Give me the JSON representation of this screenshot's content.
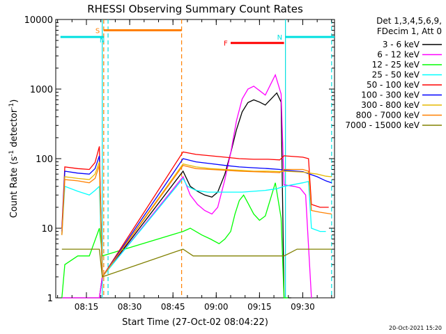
{
  "chart_data": {
    "type": "line",
    "title": "RHESSI Observing Summary Count Rates",
    "xlabel": "Start Time (27-Oct-02 08:04:22)",
    "ylabel_parts": [
      "Count Rate (s",
      "-1",
      " detector",
      "-1",
      ")"
    ],
    "x_unit": "minutes UT (hh:mm, 27-Oct-02)",
    "xlim": [
      "08:04:22",
      "09:41:00"
    ],
    "ylim": [
      1,
      10000
    ],
    "yscale": "log",
    "x_ticks": [
      "08:15",
      "08:30",
      "08:45",
      "09:00",
      "09:15",
      "09:30"
    ],
    "y_ticks": [
      "1",
      "10",
      "100",
      "1000",
      "10000"
    ],
    "legend_header": [
      "Det 1,3,4,5,6,9,",
      "FDecim 1, Att 0"
    ],
    "legend_position": "right",
    "footer_date": "20-Oct-2021 15:20",
    "grid": false,
    "flags": [
      {
        "label": "S",
        "color": "#ff8000",
        "start": "08:21:00",
        "end": "08:48:00",
        "level": 7000
      },
      {
        "label": "N",
        "color": "#00e0e0",
        "start": "08:06:00",
        "end": "08:21:00",
        "level": 5600
      },
      {
        "label": "N",
        "color": "#00e0e0",
        "start": "09:24:00",
        "end": "09:41:00",
        "level": 5600
      },
      {
        "label": "F",
        "color": "#ff0000",
        "start": "09:05:00",
        "end": "09:23:30",
        "level": 4600
      }
    ],
    "boundary_markers": [
      {
        "time": "08:20:30",
        "color": "#00e0e0",
        "style": "solid"
      },
      {
        "time": "08:22:30",
        "color": "#00e0e0",
        "style": "dashed"
      },
      {
        "time": "08:21:00",
        "color": "#ff8000",
        "style": "dashed"
      },
      {
        "time": "08:48:00",
        "color": "#ff8000",
        "style": "dashed"
      },
      {
        "time": "09:24:00",
        "color": "#00e0e0",
        "style": "solid"
      },
      {
        "time": "09:40:00",
        "color": "#00e0e0",
        "style": "dashed"
      }
    ],
    "series": [
      {
        "name": "3 - 6 keV",
        "color": "#000000",
        "points": [
          [
            "08:06:30",
            1
          ],
          [
            "08:19:30",
            1
          ],
          [
            "08:20:30",
            2
          ],
          [
            "08:48:30",
            66
          ],
          [
            "08:51:00",
            40
          ],
          [
            "08:53:30",
            34
          ],
          [
            "08:56:00",
            30
          ],
          [
            "08:58:30",
            28
          ],
          [
            "09:00:30",
            33
          ],
          [
            "09:03:00",
            60
          ],
          [
            "09:05:00",
            120
          ],
          [
            "09:07:00",
            260
          ],
          [
            "09:09:00",
            470
          ],
          [
            "09:11:00",
            640
          ],
          [
            "09:13:00",
            700
          ],
          [
            "09:15:00",
            650
          ],
          [
            "09:17:00",
            590
          ],
          [
            "09:19:00",
            720
          ],
          [
            "09:21:00",
            880
          ],
          [
            "09:22:30",
            650
          ],
          [
            "09:23:30",
            1
          ],
          [
            "09:26:00",
            1
          ]
        ]
      },
      {
        "name": "6 - 12 keV",
        "color": "#ff00ff",
        "points": [
          [
            "08:06:30",
            1
          ],
          [
            "08:19:30",
            1
          ],
          [
            "08:20:30",
            2
          ],
          [
            "08:48:30",
            55
          ],
          [
            "08:51:00",
            30
          ],
          [
            "08:53:30",
            22
          ],
          [
            "08:56:00",
            18
          ],
          [
            "08:58:30",
            16
          ],
          [
            "09:00:30",
            20
          ],
          [
            "09:03:00",
            50
          ],
          [
            "09:05:00",
            120
          ],
          [
            "09:07:00",
            350
          ],
          [
            "09:09:00",
            720
          ],
          [
            "09:11:00",
            1000
          ],
          [
            "09:13:00",
            1100
          ],
          [
            "09:15:00",
            950
          ],
          [
            "09:17:00",
            820
          ],
          [
            "09:19:00",
            1200
          ],
          [
            "09:20:30",
            1600
          ],
          [
            "09:22:30",
            850
          ],
          [
            "09:23:30",
            42
          ],
          [
            "09:27:00",
            40
          ],
          [
            "09:29:00",
            38
          ],
          [
            "09:31:00",
            30
          ],
          [
            "09:33:00",
            1
          ]
        ]
      },
      {
        "name": "12 - 25 keV",
        "color": "#00ff00",
        "points": [
          [
            "08:06:30",
            1
          ],
          [
            "08:07:30",
            3
          ],
          [
            "08:12:00",
            4
          ],
          [
            "08:16:00",
            4
          ],
          [
            "08:19:30",
            10
          ],
          [
            "08:20:30",
            4
          ],
          [
            "08:48:30",
            9
          ],
          [
            "08:51:00",
            10
          ],
          [
            "08:55:00",
            8
          ],
          [
            "08:58:00",
            7
          ],
          [
            "09:01:00",
            6
          ],
          [
            "09:03:00",
            7
          ],
          [
            "09:05:00",
            9
          ],
          [
            "09:06:30",
            16
          ],
          [
            "09:08:00",
            25
          ],
          [
            "09:09:30",
            30
          ],
          [
            "09:11:00",
            23
          ],
          [
            "09:13:00",
            16
          ],
          [
            "09:15:00",
            13
          ],
          [
            "09:17:00",
            15
          ],
          [
            "09:19:00",
            28
          ],
          [
            "09:20:30",
            45
          ],
          [
            "09:22:30",
            14
          ],
          [
            "09:23:30",
            1
          ],
          [
            "09:25:00",
            1
          ]
        ]
      },
      {
        "name": "25 - 50 keV",
        "color": "#00ffff",
        "points": [
          [
            "08:06:30",
            8
          ],
          [
            "08:07:30",
            40
          ],
          [
            "08:12:00",
            34
          ],
          [
            "08:16:00",
            30
          ],
          [
            "08:18:00",
            35
          ],
          [
            "08:19:30",
            40
          ],
          [
            "08:20:30",
            2
          ],
          [
            "08:48:30",
            52
          ],
          [
            "08:50:00",
            40
          ],
          [
            "08:53:00",
            35
          ],
          [
            "08:57:00",
            33
          ],
          [
            "09:01:00",
            33
          ],
          [
            "09:05:00",
            33
          ],
          [
            "09:09:00",
            33
          ],
          [
            "09:13:00",
            34
          ],
          [
            "09:17:00",
            35
          ],
          [
            "09:21:00",
            37
          ],
          [
            "09:23:30",
            40
          ],
          [
            "09:30:00",
            45
          ],
          [
            "09:32:00",
            47
          ],
          [
            "09:33:00",
            10
          ],
          [
            "09:36:00",
            9
          ],
          [
            "09:38:00",
            9
          ]
        ]
      },
      {
        "name": "50 - 100 keV",
        "color": "#ff0000",
        "points": [
          [
            "08:06:30",
            10
          ],
          [
            "08:07:30",
            76
          ],
          [
            "08:12:00",
            72
          ],
          [
            "08:16:00",
            70
          ],
          [
            "08:18:00",
            88
          ],
          [
            "08:19:30",
            150
          ],
          [
            "08:20:30",
            2
          ],
          [
            "08:48:30",
            125
          ],
          [
            "08:53:00",
            115
          ],
          [
            "08:58:00",
            110
          ],
          [
            "09:03:00",
            105
          ],
          [
            "09:08:00",
            100
          ],
          [
            "09:13:00",
            98
          ],
          [
            "09:18:00",
            98
          ],
          [
            "09:22:00",
            96
          ],
          [
            "09:23:30",
            110
          ],
          [
            "09:30:00",
            105
          ],
          [
            "09:32:00",
            100
          ],
          [
            "09:33:00",
            22
          ],
          [
            "09:36:00",
            20
          ],
          [
            "09:39:00",
            20
          ]
        ]
      },
      {
        "name": "100 - 300 keV",
        "color": "#0000ff",
        "points": [
          [
            "08:06:30",
            9
          ],
          [
            "08:07:30",
            66
          ],
          [
            "08:12:00",
            62
          ],
          [
            "08:16:00",
            60
          ],
          [
            "08:18:00",
            72
          ],
          [
            "08:19:30",
            110
          ],
          [
            "08:20:30",
            2
          ],
          [
            "08:48:30",
            100
          ],
          [
            "08:53:00",
            90
          ],
          [
            "08:58:00",
            85
          ],
          [
            "09:03:00",
            80
          ],
          [
            "09:08:00",
            76
          ],
          [
            "09:13:00",
            74
          ],
          [
            "09:18:00",
            72
          ],
          [
            "09:22:00",
            70
          ],
          [
            "09:23:30",
            68
          ],
          [
            "09:30:00",
            65
          ],
          [
            "09:35:00",
            55
          ],
          [
            "09:38:00",
            48
          ],
          [
            "09:40:00",
            45
          ]
        ]
      },
      {
        "name": "300 - 800 keV",
        "color": "#e6b800",
        "points": [
          [
            "08:06:30",
            8
          ],
          [
            "08:07:30",
            55
          ],
          [
            "08:12:00",
            52
          ],
          [
            "08:16:00",
            50
          ],
          [
            "08:18:00",
            60
          ],
          [
            "08:19:30",
            90
          ],
          [
            "08:20:30",
            2
          ],
          [
            "08:48:30",
            84
          ],
          [
            "08:53:00",
            76
          ],
          [
            "08:58:00",
            72
          ],
          [
            "09:03:00",
            70
          ],
          [
            "09:08:00",
            68
          ],
          [
            "09:13:00",
            66
          ],
          [
            "09:18:00",
            66
          ],
          [
            "09:22:00",
            65
          ],
          [
            "09:23:30",
            66
          ],
          [
            "09:30:00",
            64
          ],
          [
            "09:35:00",
            60
          ],
          [
            "09:38:00",
            56
          ],
          [
            "09:40:00",
            55
          ]
        ]
      },
      {
        "name": "800 - 7000 keV",
        "color": "#ff8000",
        "points": [
          [
            "08:06:30",
            8
          ],
          [
            "08:07:30",
            50
          ],
          [
            "08:12:00",
            48
          ],
          [
            "08:16:00",
            45
          ],
          [
            "08:18:00",
            52
          ],
          [
            "08:19:30",
            80
          ],
          [
            "08:20:30",
            2
          ],
          [
            "08:48:30",
            80
          ],
          [
            "08:53:00",
            72
          ],
          [
            "08:58:00",
            70
          ],
          [
            "09:03:00",
            68
          ],
          [
            "09:08:00",
            66
          ],
          [
            "09:13:00",
            65
          ],
          [
            "09:18:00",
            64
          ],
          [
            "09:22:00",
            63
          ],
          [
            "09:23:30",
            70
          ],
          [
            "09:30:00",
            70
          ],
          [
            "09:32:00",
            66
          ],
          [
            "09:33:00",
            18
          ],
          [
            "09:36:00",
            17
          ],
          [
            "09:40:00",
            16
          ]
        ]
      },
      {
        "name": "7000 - 15000 keV",
        "color": "#808000",
        "points": [
          [
            "08:06:30",
            5
          ],
          [
            "08:09:00",
            5
          ],
          [
            "08:12:00",
            5
          ],
          [
            "08:15:00",
            5
          ],
          [
            "08:18:00",
            5
          ],
          [
            "08:19:30",
            5
          ],
          [
            "08:20:30",
            2
          ],
          [
            "08:48:30",
            5
          ],
          [
            "08:52:00",
            4
          ],
          [
            "08:56:00",
            4
          ],
          [
            "09:00:00",
            4
          ],
          [
            "09:04:00",
            4
          ],
          [
            "09:08:00",
            4
          ],
          [
            "09:12:00",
            4
          ],
          [
            "09:16:00",
            4
          ],
          [
            "09:20:00",
            4
          ],
          [
            "09:23:30",
            4
          ],
          [
            "09:28:00",
            5
          ],
          [
            "09:32:00",
            5
          ],
          [
            "09:36:00",
            5
          ],
          [
            "09:40:00",
            5
          ]
        ]
      }
    ]
  }
}
